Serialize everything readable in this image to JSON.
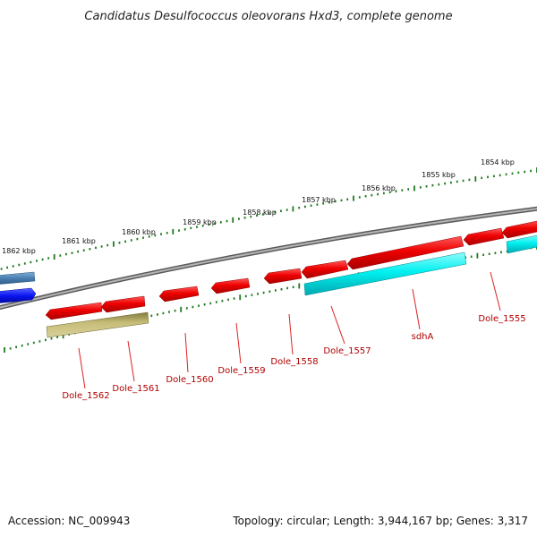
{
  "title": "Candidatus Desulfococcus oleovorans Hxd3, complete genome",
  "footer": {
    "accession": "Accession: NC_009943",
    "summary": "Topology: circular; Length: 3,944,167 bp; Genes: 3,317"
  },
  "colors": {
    "red_gene": "#ee0000",
    "cyan_gene": "#00f0f0",
    "olive_gene": "#b8ae6a",
    "steel_gene": "#4a7fb0",
    "blue_gene": "#0a14f0",
    "backbone": "#777777",
    "ticks": "#1f7a1f",
    "label_line": "#dd2222"
  },
  "ticks": [
    {
      "label": "1862 kbp"
    },
    {
      "label": "1861 kbp"
    },
    {
      "label": "1860 kbp"
    },
    {
      "label": "1859 kbp"
    },
    {
      "label": "1858 kbp"
    },
    {
      "label": "1857 kbp"
    },
    {
      "label": "1856 kbp"
    },
    {
      "label": "1855 kbp"
    },
    {
      "label": "1854 kbp"
    }
  ],
  "genes": [
    {
      "label": "Dole_1562",
      "color": "red"
    },
    {
      "label": "Dole_1561",
      "color": "red"
    },
    {
      "label": "Dole_1560",
      "color": "red"
    },
    {
      "label": "Dole_1559",
      "color": "red"
    },
    {
      "label": "Dole_1558",
      "color": "red"
    },
    {
      "label": "Dole_1557",
      "color": "red"
    },
    {
      "label": "sdhA",
      "color": "red"
    },
    {
      "label": "Dole_1555",
      "color": "red"
    }
  ]
}
